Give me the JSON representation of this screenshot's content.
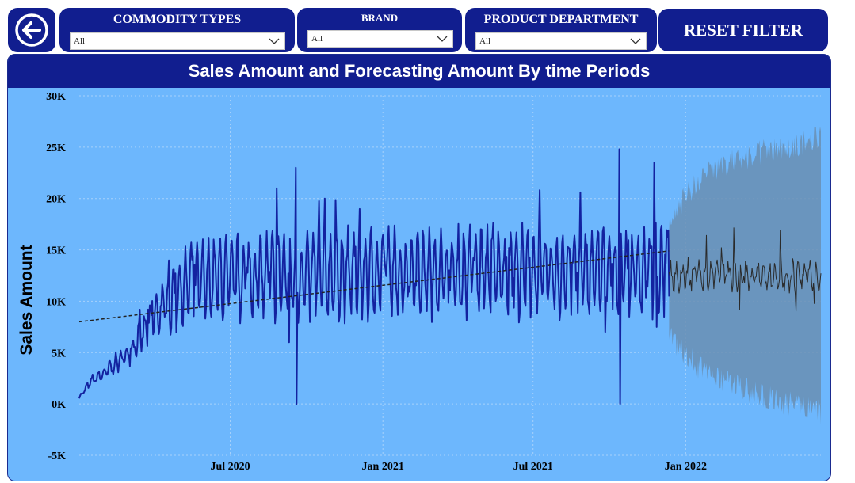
{
  "filters": [
    {
      "title": "COMMODITY TYPES",
      "value": "All"
    },
    {
      "title": "BRAND",
      "value": "All"
    },
    {
      "title": "PRODUCT DEPARTMENT",
      "value": "All"
    }
  ],
  "reset_label": "RESET FILTER",
  "icons": {
    "back": "back-arrow-icon",
    "dropdown": "chevron-down-icon"
  },
  "colors": {
    "navy": "#111e8f",
    "plot_bg": "#6db7fd",
    "actual": "#1322a0",
    "forecast": "#2a2a2a",
    "band": "#6a8fb3",
    "trend": "#222222"
  },
  "chart_data": {
    "type": "line",
    "title": "Sales Amount and Forecasting Amount By time Periods",
    "ylabel": "Sales Amount",
    "xlabel": "",
    "ylim": [
      -5000,
      30000
    ],
    "y_ticks": [
      -5000,
      0,
      5000,
      10000,
      15000,
      20000,
      25000,
      30000
    ],
    "y_tick_labels": [
      "-5K",
      "0K",
      "5K",
      "10K",
      "15K",
      "20K",
      "25K",
      "30K"
    ],
    "x_ticks": [
      "2020-07-01",
      "2021-01-01",
      "2021-07-01",
      "2022-01-01"
    ],
    "x_tick_labels": [
      "Jul 2020",
      "Jan 2021",
      "Jul 2021",
      "Jan 2022"
    ],
    "grid": true,
    "series": [
      {
        "role": "actual",
        "start": "2020-01-01",
        "end": "2021-12-12",
        "points": [
          [
            "2020-01-01",
            600
          ],
          [
            "2020-01-15",
            2200
          ],
          [
            "2020-02-01",
            3000
          ],
          [
            "2020-02-15",
            4000
          ],
          [
            "2020-03-01",
            5000
          ],
          [
            "2020-03-15",
            6500
          ],
          [
            "2020-04-01",
            8500
          ],
          [
            "2020-04-15",
            9800
          ],
          [
            "2020-05-01",
            11000
          ],
          [
            "2020-05-15",
            12000
          ],
          [
            "2020-06-01",
            11800
          ],
          [
            "2020-06-15",
            12300
          ],
          [
            "2020-07-01",
            12000
          ],
          [
            "2020-08-01",
            12300
          ],
          [
            "2020-09-01",
            12600
          ],
          [
            "2020-09-20",
            12400
          ],
          [
            "2020-10-01",
            12400
          ],
          [
            "2020-11-01",
            12800
          ],
          [
            "2020-12-01",
            12500
          ],
          [
            "2021-01-01",
            12800
          ],
          [
            "2021-02-01",
            12600
          ],
          [
            "2021-03-01",
            12900
          ],
          [
            "2021-04-01",
            12700
          ],
          [
            "2021-05-01",
            13000
          ],
          [
            "2021-06-01",
            12800
          ],
          [
            "2021-07-01",
            12900
          ],
          [
            "2021-08-01",
            12700
          ],
          [
            "2021-09-01",
            13000
          ],
          [
            "2021-10-01",
            12800
          ],
          [
            "2021-11-01",
            12900
          ],
          [
            "2021-12-12",
            12800
          ]
        ],
        "spikes": [
          {
            "date": "2020-09-18",
            "value": 23000
          },
          {
            "date": "2020-09-19",
            "value": 0
          },
          {
            "date": "2020-09-10",
            "value": 6000
          },
          {
            "date": "2020-08-26",
            "value": 21000
          },
          {
            "date": "2021-10-13",
            "value": 24800
          },
          {
            "date": "2021-10-14",
            "value": 0
          },
          {
            "date": "2021-11-24",
            "value": 23500
          },
          {
            "date": "2021-09-26",
            "value": 7000
          },
          {
            "date": "2021-11-27",
            "value": 7500
          }
        ]
      },
      {
        "role": "forecast",
        "start": "2021-12-12",
        "end": "2022-06-13",
        "center": 12500,
        "upper": [
          [
            0,
            18000
          ],
          [
            0.2,
            22000
          ],
          [
            0.4,
            23500
          ],
          [
            0.6,
            24500
          ],
          [
            0.8,
            25000
          ],
          [
            1,
            26000
          ]
        ],
        "lower": [
          [
            0,
            6500
          ],
          [
            0.2,
            3500
          ],
          [
            0.4,
            2000
          ],
          [
            0.6,
            800
          ],
          [
            0.8,
            0
          ],
          [
            1,
            -800
          ]
        ]
      }
    ],
    "trend": {
      "from": [
        "2020-01-01",
        8000
      ],
      "to": [
        "2021-12-12",
        14900
      ]
    }
  }
}
